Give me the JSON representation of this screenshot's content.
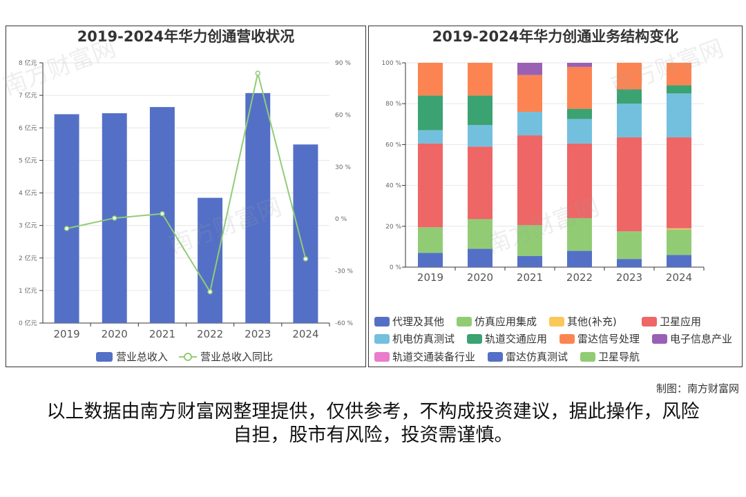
{
  "watermark": "南方财富网",
  "credit": "制图：南方财富网",
  "disclaimer": "以上数据由南方财富网整理提供，仅供参考，不构成投资建议，据此操作，风险自担，股市有风险，投资需谨慎。",
  "chart_data": [
    {
      "type": "bar",
      "title": "2019-2024年华力创通营收状况",
      "categories": [
        "2019",
        "2020",
        "2021",
        "2022",
        "2023",
        "2024"
      ],
      "left_axis": {
        "ticks": [
          "0 亿元",
          "1 亿元",
          "2 亿元",
          "3 亿元",
          "4 亿元",
          "5 亿元",
          "6 亿元",
          "7 亿元",
          "8 亿元"
        ],
        "ylim": [
          0,
          8
        ]
      },
      "right_axis": {
        "ticks": [
          "-60 %",
          "-30 %",
          "0 %",
          "30 %",
          "60 %",
          "90 %"
        ],
        "ylim": [
          -60,
          90
        ]
      },
      "series": [
        {
          "name": "营业总收入",
          "kind": "bar",
          "color": "#5470c6",
          "values": [
            6.42,
            6.45,
            6.64,
            3.85,
            7.07,
            5.49
          ]
        },
        {
          "name": "营业总收入同比",
          "kind": "line",
          "color": "#91cc75",
          "values": [
            -5.5,
            0.5,
            3.0,
            -42.0,
            84.0,
            -23.0
          ]
        }
      ],
      "legend": "bottom-center"
    },
    {
      "type": "bar",
      "stacked": true,
      "title": "2019-2024年华力创通业务结构变化",
      "categories": [
        "2019",
        "2020",
        "2021",
        "2022",
        "2023",
        "2024"
      ],
      "y_axis": {
        "ticks": [
          "0 %",
          "20 %",
          "40 %",
          "60 %",
          "80 %",
          "100 %"
        ],
        "ylim": [
          0,
          100
        ]
      },
      "series": [
        {
          "name": "代理及其他",
          "color": "#5470c6",
          "values": [
            7,
            9,
            5.5,
            8,
            4,
            6
          ]
        },
        {
          "name": "仿真应用集成",
          "color": "#91cc75",
          "values": [
            12.5,
            14.5,
            15,
            16,
            13.5,
            12.5
          ]
        },
        {
          "name": "其他(补充)",
          "color": "#fac858",
          "values": [
            0,
            0,
            0,
            0,
            0,
            0.5
          ]
        },
        {
          "name": "卫星应用",
          "color": "#ee6666",
          "values": [
            41,
            35.5,
            44,
            36.5,
            46,
            44.5
          ]
        },
        {
          "name": "机电仿真测试",
          "color": "#73c0de",
          "values": [
            6.5,
            10.5,
            11.5,
            12,
            16.5,
            21.5
          ]
        },
        {
          "name": "轨道交通应用",
          "color": "#3ba272",
          "values": [
            17,
            14.5,
            0,
            5,
            7,
            4
          ]
        },
        {
          "name": "雷达信号处理",
          "color": "#fc8452",
          "values": [
            16,
            16,
            18,
            20.5,
            13,
            11
          ]
        },
        {
          "name": "电子信息产业",
          "color": "#9a60b4",
          "values": [
            0,
            0,
            6,
            2,
            0,
            0
          ]
        },
        {
          "name": "轨道交通装备行业",
          "color": "#ea7ccc",
          "values": [
            0,
            0,
            0,
            0,
            0,
            0
          ]
        },
        {
          "name": "雷达仿真测试",
          "color": "#5470c6",
          "values": [
            0,
            0,
            0,
            0,
            0,
            0
          ]
        },
        {
          "name": "卫星导航",
          "color": "#91cc75",
          "values": [
            0,
            0,
            0,
            0,
            0,
            0
          ]
        }
      ],
      "legend": "bottom"
    }
  ]
}
